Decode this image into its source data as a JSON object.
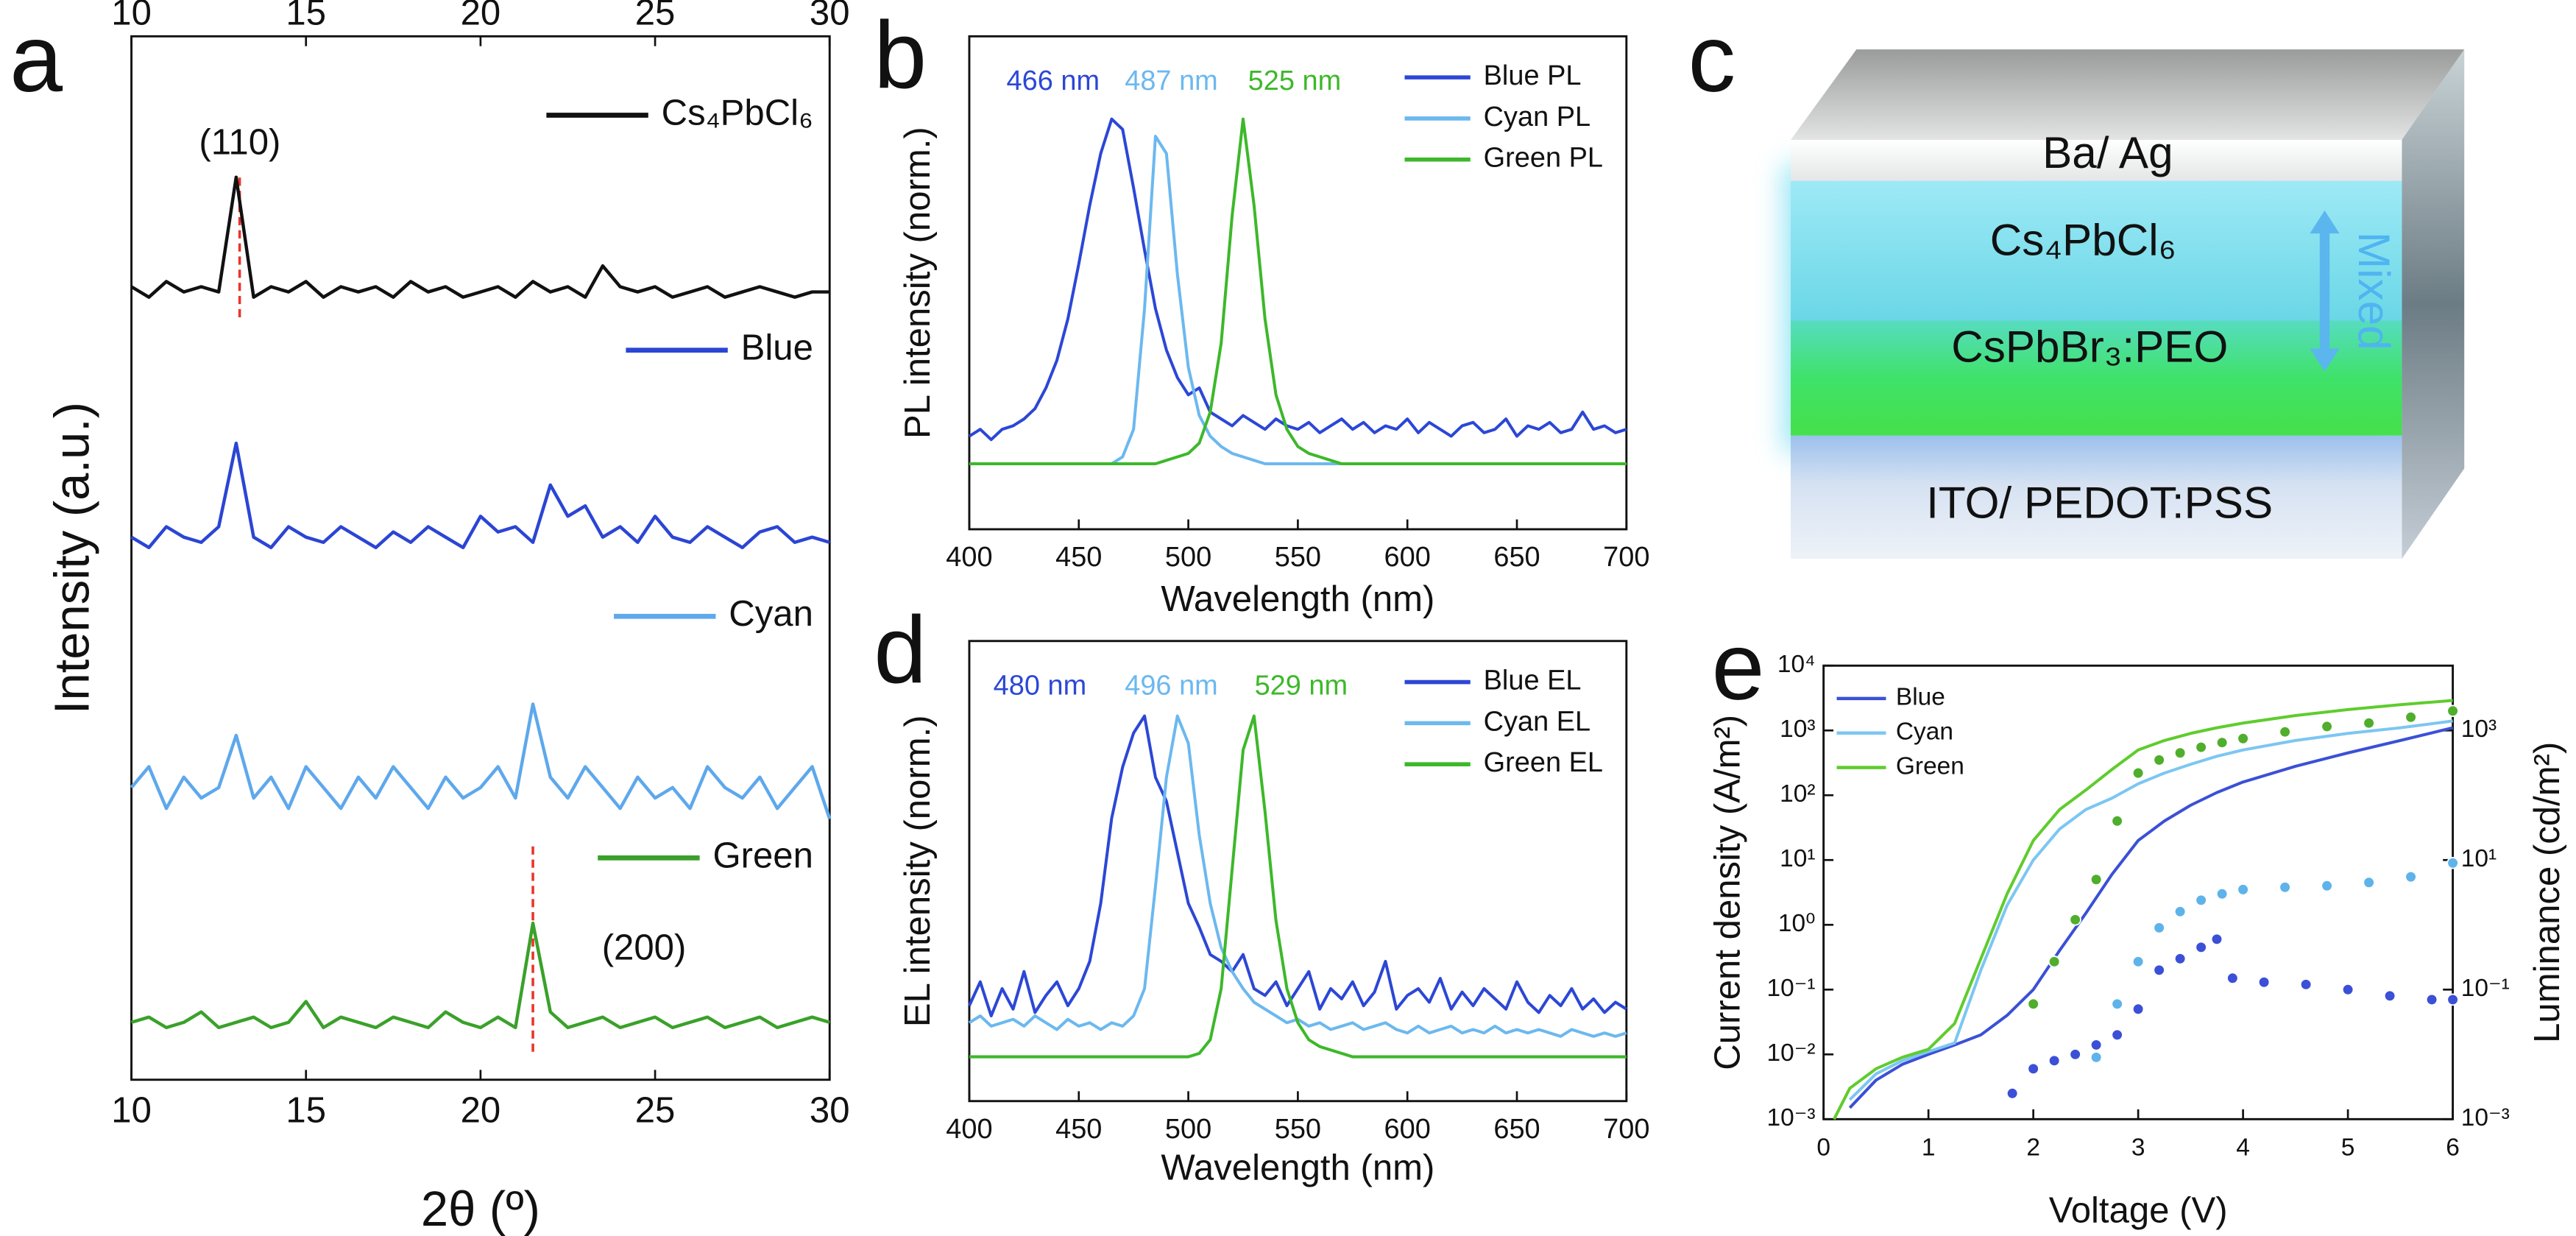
{
  "chart_data": [
    {
      "type": "line",
      "panel": "a",
      "xlabel": "2θ (º)",
      "ylabel": "Intensity (a.u.)",
      "xlim": [
        10,
        30
      ],
      "xticks": [
        10,
        15,
        20,
        25,
        30
      ],
      "top_axis": true,
      "ylim": [
        0,
        100
      ],
      "legend": "inline",
      "x": [
        10,
        10.5,
        11,
        11.5,
        12,
        12.5,
        13,
        13.5,
        14,
        14.5,
        15,
        15.5,
        16,
        16.5,
        17,
        17.5,
        18,
        18.5,
        19,
        19.5,
        20,
        20.5,
        21,
        21.5,
        22,
        22.5,
        23,
        23.5,
        24,
        24.5,
        25,
        25.5,
        26,
        26.5,
        27,
        27.5,
        28,
        28.5,
        29,
        29.5,
        30
      ],
      "series": [
        {
          "name": "Cs₄PbCl₆",
          "color": "#111111",
          "values": [
            76,
            75,
            76.5,
            75.5,
            76,
            75.5,
            86.5,
            75,
            76,
            75.5,
            76.5,
            75,
            76,
            75.5,
            76,
            75,
            76.5,
            75.5,
            76,
            75,
            75.5,
            76,
            75,
            76.5,
            75.5,
            76,
            75,
            78,
            76,
            75.5,
            76,
            75,
            75.5,
            76,
            75,
            75.5,
            76,
            75.5,
            75,
            75.5,
            75.5
          ]
        },
        {
          "name": "Blue",
          "color": "#2b45d4",
          "values": [
            52,
            51,
            53,
            52,
            51.5,
            53,
            61,
            52,
            51,
            53,
            52,
            51.5,
            53,
            52,
            51,
            52.5,
            51.5,
            53,
            52,
            51,
            54,
            52.5,
            53,
            51.5,
            57,
            54,
            55,
            52,
            53,
            51.5,
            54,
            52,
            51.5,
            53,
            52,
            51,
            52.5,
            53,
            51.5,
            52,
            51.5
          ]
        },
        {
          "name": "Cyan",
          "color": "#5ea8ec",
          "values": [
            28,
            30,
            26,
            29,
            27,
            28,
            33,
            27,
            29,
            26,
            30,
            28,
            26,
            29,
            27,
            30,
            28,
            26,
            29,
            27,
            28,
            30,
            27,
            36,
            29,
            27,
            30,
            28,
            26,
            29,
            27,
            28,
            26,
            30,
            28,
            27,
            29,
            26,
            28,
            30,
            25
          ]
        },
        {
          "name": "Green",
          "color": "#3aa12a",
          "values": [
            5.5,
            6,
            5,
            5.5,
            6.5,
            5,
            5.5,
            6,
            5,
            5.5,
            7.5,
            5,
            6,
            5.5,
            5,
            6,
            5.5,
            5,
            6.5,
            5.5,
            5,
            6,
            5,
            15,
            6.5,
            5,
            5.5,
            6,
            5,
            5.5,
            6,
            5,
            5.5,
            6,
            5,
            5.5,
            6,
            5,
            5.5,
            6,
            5.5
          ]
        }
      ],
      "annotations": [
        {
          "text": "(110)",
          "x": 13.1,
          "color": "#e8352a"
        },
        {
          "text": "(200)",
          "x": 21.5,
          "color": "#e8352a"
        }
      ]
    },
    {
      "type": "line",
      "panel": "b",
      "xlabel": "Wavelength (nm)",
      "ylabel": "PL intensity (norm.)",
      "xlim": [
        400,
        700
      ],
      "xticks": [
        400,
        450,
        500,
        550,
        600,
        650,
        700
      ],
      "ylim": [
        -0.19,
        1.24
      ],
      "legend": "top-right",
      "x": [
        400,
        405,
        410,
        415,
        420,
        425,
        430,
        435,
        440,
        445,
        450,
        455,
        460,
        465,
        470,
        475,
        480,
        485,
        490,
        495,
        500,
        505,
        510,
        515,
        520,
        525,
        530,
        535,
        540,
        545,
        550,
        555,
        560,
        565,
        570,
        575,
        580,
        585,
        590,
        595,
        600,
        605,
        610,
        615,
        620,
        625,
        630,
        635,
        640,
        645,
        650,
        655,
        660,
        665,
        670,
        675,
        680,
        685,
        690,
        695,
        700
      ],
      "series": [
        {
          "name": "Blue PL",
          "color": "#2c47d6",
          "values": [
            0.08,
            0.1,
            0.07,
            0.1,
            0.11,
            0.13,
            0.16,
            0.22,
            0.3,
            0.42,
            0.58,
            0.75,
            0.9,
            1.0,
            0.97,
            0.8,
            0.62,
            0.45,
            0.33,
            0.25,
            0.2,
            0.22,
            0.15,
            0.13,
            0.11,
            0.14,
            0.12,
            0.1,
            0.13,
            0.11,
            0.1,
            0.12,
            0.09,
            0.11,
            0.13,
            0.1,
            0.12,
            0.09,
            0.11,
            0.1,
            0.13,
            0.09,
            0.12,
            0.1,
            0.08,
            0.11,
            0.12,
            0.09,
            0.1,
            0.13,
            0.08,
            0.11,
            0.1,
            0.12,
            0.09,
            0.1,
            0.15,
            0.1,
            0.11,
            0.09,
            0.1
          ]
        },
        {
          "name": "Cyan PL",
          "color": "#6cb8ef",
          "values": [
            0,
            0,
            0,
            0,
            0,
            0,
            0,
            0,
            0,
            0,
            0,
            0,
            0,
            0,
            0.02,
            0.1,
            0.45,
            0.95,
            0.9,
            0.55,
            0.28,
            0.14,
            0.08,
            0.05,
            0.03,
            0.02,
            0.01,
            0,
            0,
            0,
            0,
            0,
            0,
            0,
            0,
            0,
            0,
            0,
            0,
            0,
            0,
            0,
            0,
            0,
            0,
            0,
            0,
            0,
            0,
            0,
            0,
            0,
            0,
            0,
            0,
            0,
            0,
            0,
            0,
            0,
            0
          ]
        },
        {
          "name": "Green PL",
          "color": "#3db82a",
          "values": [
            0,
            0,
            0,
            0,
            0,
            0,
            0,
            0,
            0,
            0,
            0,
            0,
            0,
            0,
            0,
            0,
            0,
            0,
            0.01,
            0.02,
            0.03,
            0.06,
            0.15,
            0.35,
            0.72,
            1.0,
            0.75,
            0.42,
            0.2,
            0.1,
            0.05,
            0.03,
            0.02,
            0.01,
            0,
            0,
            0,
            0,
            0,
            0,
            0,
            0,
            0,
            0,
            0,
            0,
            0,
            0,
            0,
            0,
            0,
            0,
            0,
            0,
            0,
            0,
            0,
            0,
            0,
            0,
            0
          ]
        }
      ],
      "annotations": [
        {
          "text": "466 nm",
          "color": "#2c47d6"
        },
        {
          "text": "487 nm",
          "color": "#6cb8ef"
        },
        {
          "text": "525 nm",
          "color": "#3db82a"
        }
      ]
    },
    {
      "type": "line",
      "panel": "d",
      "xlabel": "Wavelength (nm)",
      "ylabel": "EL intensity (norm.)",
      "xlim": [
        400,
        700
      ],
      "xticks": [
        400,
        450,
        500,
        550,
        600,
        650,
        700
      ],
      "ylim": [
        -0.13,
        1.22
      ],
      "legend": "top-right",
      "x": [
        400,
        405,
        410,
        415,
        420,
        425,
        430,
        435,
        440,
        445,
        450,
        455,
        460,
        465,
        470,
        475,
        480,
        485,
        490,
        495,
        500,
        505,
        510,
        515,
        520,
        525,
        530,
        535,
        540,
        545,
        550,
        555,
        560,
        565,
        570,
        575,
        580,
        585,
        590,
        595,
        600,
        605,
        610,
        615,
        620,
        625,
        630,
        635,
        640,
        645,
        650,
        655,
        660,
        665,
        670,
        675,
        680,
        685,
        690,
        695,
        700
      ],
      "series": [
        {
          "name": "Blue EL",
          "color": "#2c47d6",
          "values": [
            0.15,
            0.22,
            0.12,
            0.2,
            0.14,
            0.25,
            0.13,
            0.18,
            0.22,
            0.15,
            0.2,
            0.28,
            0.45,
            0.7,
            0.85,
            0.95,
            1.0,
            0.82,
            0.75,
            0.6,
            0.45,
            0.38,
            0.3,
            0.28,
            0.25,
            0.3,
            0.2,
            0.18,
            0.22,
            0.15,
            0.2,
            0.25,
            0.14,
            0.2,
            0.17,
            0.22,
            0.15,
            0.19,
            0.28,
            0.14,
            0.18,
            0.2,
            0.16,
            0.23,
            0.14,
            0.19,
            0.15,
            0.2,
            0.17,
            0.14,
            0.22,
            0.16,
            0.13,
            0.18,
            0.15,
            0.2,
            0.14,
            0.17,
            0.13,
            0.16,
            0.14
          ]
        },
        {
          "name": "Cyan EL",
          "color": "#6cb8ef",
          "values": [
            0.1,
            0.12,
            0.09,
            0.1,
            0.11,
            0.09,
            0.12,
            0.1,
            0.08,
            0.11,
            0.09,
            0.1,
            0.08,
            0.1,
            0.09,
            0.12,
            0.2,
            0.5,
            0.82,
            1.0,
            0.92,
            0.65,
            0.45,
            0.32,
            0.25,
            0.2,
            0.16,
            0.14,
            0.12,
            0.1,
            0.11,
            0.09,
            0.1,
            0.08,
            0.09,
            0.1,
            0.08,
            0.09,
            0.1,
            0.08,
            0.07,
            0.09,
            0.07,
            0.08,
            0.09,
            0.07,
            0.08,
            0.07,
            0.09,
            0.07,
            0.08,
            0.07,
            0.08,
            0.07,
            0.06,
            0.08,
            0.07,
            0.06,
            0.07,
            0.06,
            0.07
          ]
        },
        {
          "name": "Green EL",
          "color": "#3db82a",
          "values": [
            0,
            0,
            0,
            0,
            0,
            0,
            0,
            0,
            0,
            0,
            0,
            0,
            0,
            0,
            0,
            0,
            0,
            0,
            0,
            0,
            0,
            0.01,
            0.05,
            0.2,
            0.55,
            0.9,
            1.0,
            0.72,
            0.4,
            0.2,
            0.1,
            0.05,
            0.03,
            0.02,
            0.01,
            0,
            0,
            0,
            0,
            0,
            0,
            0,
            0,
            0,
            0,
            0,
            0,
            0,
            0,
            0,
            0,
            0,
            0,
            0,
            0,
            0,
            0,
            0,
            0,
            0,
            0
          ]
        }
      ],
      "annotations": [
        {
          "text": "480 nm",
          "color": "#2c47d6"
        },
        {
          "text": "496 nm",
          "color": "#6cb8ef"
        },
        {
          "text": "529 nm",
          "color": "#3db82a"
        }
      ]
    },
    {
      "type": "line",
      "panel": "e",
      "xlabel": "Voltage (V)",
      "ylabel": "Current density (A/m²)",
      "y2label": "Luminance (cd/m²)",
      "xlim": [
        0,
        6
      ],
      "xticks": [
        0,
        1,
        2,
        3,
        4,
        5,
        6
      ],
      "ylog": true,
      "ylim": [
        0.001,
        10000
      ],
      "yticks": [
        {
          "value": 0.001,
          "label": "10⁻³"
        },
        {
          "value": 0.01,
          "label": "10⁻²"
        },
        {
          "value": 0.1,
          "label": "10⁻¹"
        },
        {
          "value": 1,
          "label": "10⁰"
        },
        {
          "value": 10,
          "label": "10¹"
        },
        {
          "value": 100,
          "label": "10²"
        },
        {
          "value": 1000,
          "label": "10³"
        },
        {
          "value": 10000,
          "label": "10⁴"
        }
      ],
      "y2log": true,
      "y2lim": [
        0.001,
        10000
      ],
      "y2ticks": [
        {
          "value": 0.001,
          "label": "10⁻³"
        },
        {
          "value": 0.1,
          "label": "10⁻¹"
        },
        {
          "value": 10,
          "label": "10¹"
        },
        {
          "value": 1000,
          "label": "10³"
        }
      ],
      "legend": "top-left",
      "x": [
        0.1,
        0.25,
        0.5,
        0.75,
        1,
        1.25,
        1.5,
        1.75,
        2,
        2.25,
        2.5,
        2.75,
        3,
        3.25,
        3.5,
        3.75,
        4,
        4.5,
        5,
        5.5,
        6
      ],
      "series": [
        {
          "name": "Blue",
          "color": "#3b50d6",
          "values": [
            null,
            0.0015,
            0.004,
            0.007,
            0.01,
            0.014,
            0.02,
            0.04,
            0.1,
            0.4,
            1.5,
            6,
            20,
            40,
            70,
            110,
            160,
            280,
            450,
            700,
            1100
          ]
        },
        {
          "name": "Cyan",
          "color": "#7cc6f2",
          "values": [
            null,
            0.002,
            0.005,
            0.008,
            0.011,
            0.015,
            0.2,
            2,
            10,
            30,
            60,
            90,
            150,
            220,
            300,
            400,
            500,
            700,
            900,
            1100,
            1400
          ]
        },
        {
          "name": "Green",
          "color": "#5fcc2e",
          "values": [
            0.001,
            0.003,
            0.006,
            0.009,
            0.012,
            0.03,
            0.3,
            3,
            20,
            60,
            120,
            250,
            500,
            700,
            900,
            1100,
            1300,
            1700,
            2100,
            2500,
            2900
          ]
        },
        {
          "type": "scatter",
          "axis": "y2",
          "color": "#3b50d6",
          "x": [
            1.8,
            2.0,
            2.2,
            2.4,
            2.6,
            2.8,
            3.0,
            3.2,
            3.4,
            3.6,
            3.75,
            3.9,
            4.2,
            4.6,
            5.0,
            5.4,
            5.8,
            6.0
          ],
          "values": [
            0.0025,
            0.006,
            0.008,
            0.01,
            0.014,
            0.02,
            0.05,
            0.2,
            0.3,
            0.45,
            0.6,
            0.15,
            0.13,
            0.12,
            0.1,
            0.08,
            0.07,
            0.07
          ]
        },
        {
          "type": "scatter",
          "axis": "y2",
          "color": "#5eb3ea",
          "x": [
            2.6,
            2.8,
            3.0,
            3.2,
            3.4,
            3.6,
            3.8,
            4.0,
            4.4,
            4.8,
            5.2,
            5.6,
            6.0
          ],
          "values": [
            0.009,
            0.06,
            0.27,
            0.9,
            1.6,
            2.4,
            3,
            3.5,
            3.8,
            4,
            4.5,
            5.5,
            9
          ]
        },
        {
          "type": "scatter",
          "axis": "y2",
          "color": "#4fae2c",
          "x": [
            2.0,
            2.2,
            2.4,
            2.6,
            2.8,
            3.0,
            3.2,
            3.4,
            3.6,
            3.8,
            4.0,
            4.4,
            4.8,
            5.2,
            5.6,
            6.0
          ],
          "values": [
            0.06,
            0.27,
            1.2,
            5,
            40,
            220,
            350,
            450,
            550,
            650,
            750,
            950,
            1150,
            1300,
            1600,
            2000
          ]
        }
      ]
    }
  ],
  "diagram": {
    "panel": "c",
    "layers": [
      "Ba/ Ag",
      "Cs₄PbCl₆",
      "CsPbBr₃:PEO",
      "ITO/ PEDOT:PSS"
    ],
    "side_label": "Mixed"
  }
}
